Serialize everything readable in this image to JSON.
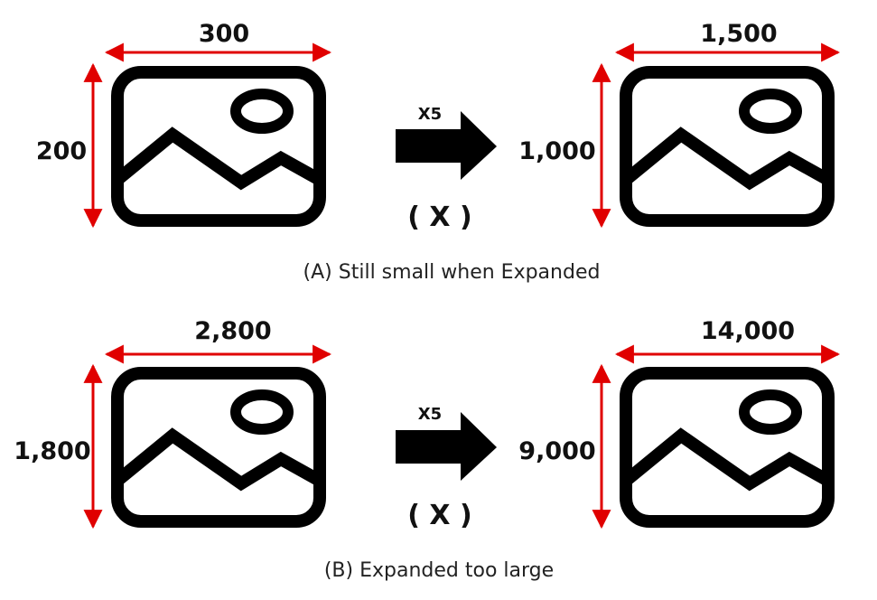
{
  "colors": {
    "dimension_line": "#e00000",
    "icon": "#000000",
    "text": "#111111"
  },
  "icons": [
    "image-icon",
    "right-arrow-icon"
  ],
  "panel_a": {
    "original": {
      "width": "300",
      "height": "200"
    },
    "multiplier": "X5",
    "expanded": {
      "width": "1,500",
      "height": "1,000"
    },
    "verdict": "( X )",
    "caption": "(A) Still small when Expanded"
  },
  "panel_b": {
    "original": {
      "width": "2,800",
      "height": "1,800"
    },
    "multiplier": "X5",
    "expanded": {
      "width": "14,000",
      "height": "9,000"
    },
    "verdict": "( X )",
    "caption": "(B) Expanded too large"
  }
}
